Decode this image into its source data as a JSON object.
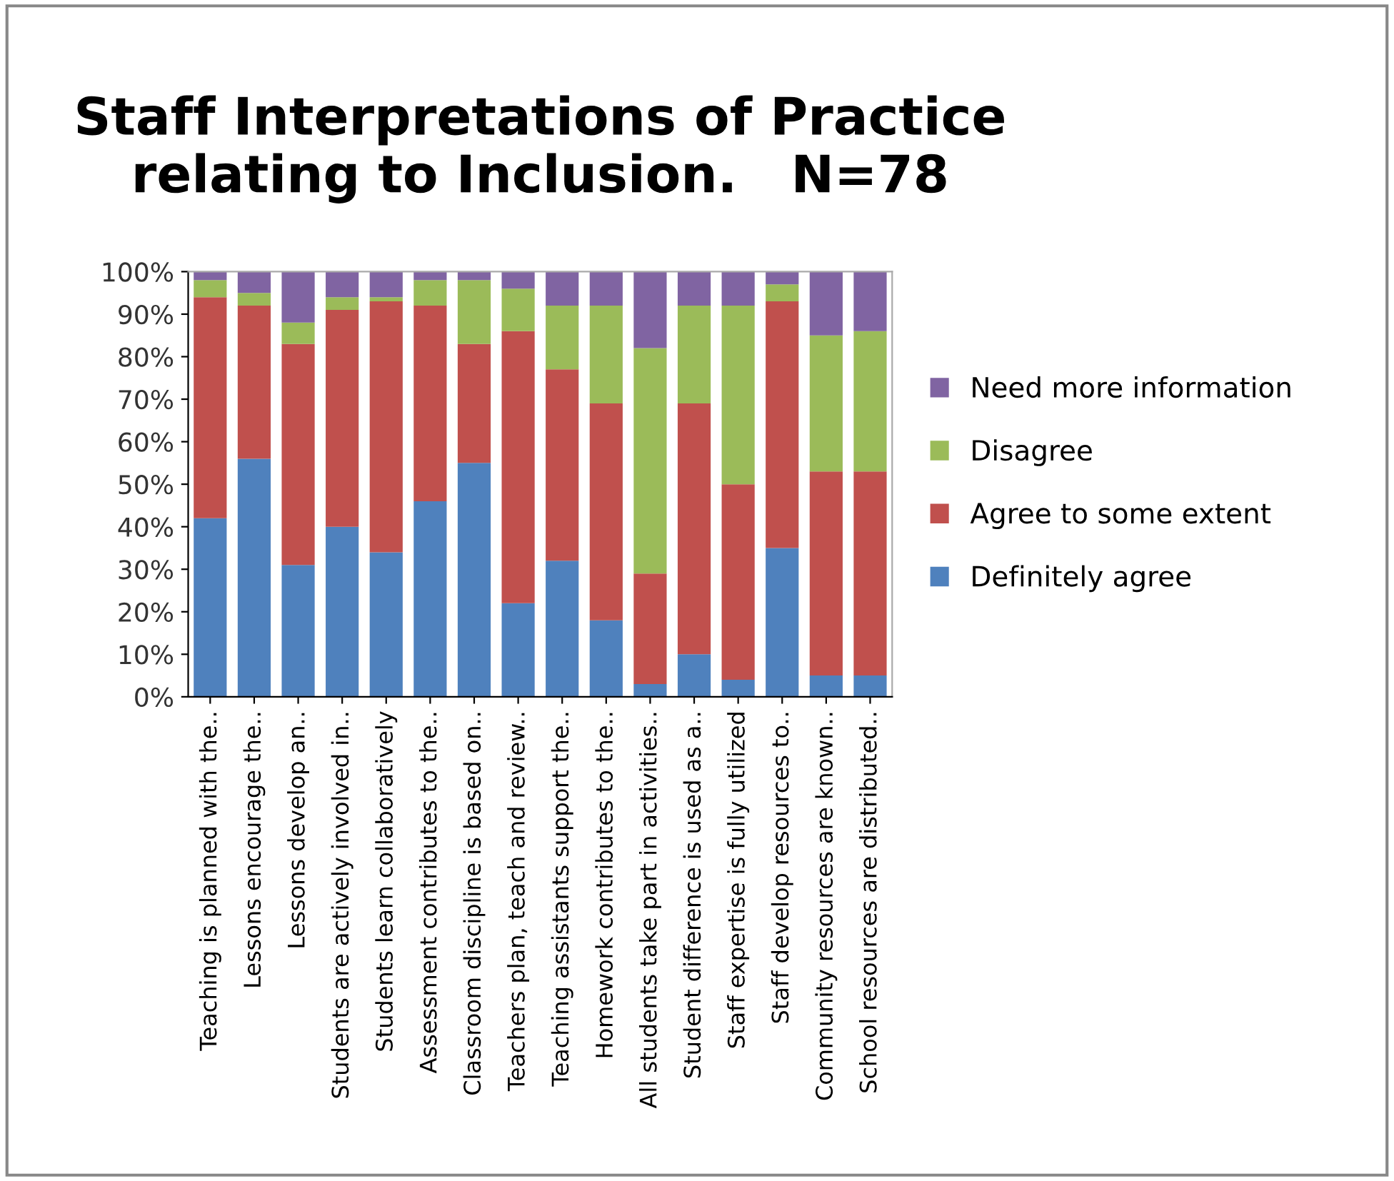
{
  "chart_data": {
    "type": "bar",
    "stacked": true,
    "title": "Staff Interpretations of Practice\nrelating to Inclusion.   N=78",
    "categories": [
      "Teaching is planned with the..",
      "Lessons encourage the..",
      "Lessons develop an..",
      "Students are actively involved in..",
      "Students learn collaboratively",
      "Assessment contributes to the..",
      "Classroom discipline is based on..",
      "Teachers plan, teach and review..",
      "Teaching assistants support the..",
      "Homework contributes to the..",
      "All students take part in activities..",
      "Student difference is used as a..",
      "Staff expertise is fully utilized",
      "Staff develop resources to..",
      "Community resources are known..",
      "School resources are distributed.."
    ],
    "series": [
      {
        "name": "Definitely agree",
        "color": "#4f81bd",
        "values": [
          42,
          56,
          31,
          40,
          34,
          46,
          55,
          22,
          32,
          18,
          3,
          10,
          4,
          35,
          5,
          5
        ]
      },
      {
        "name": "Agree to some extent",
        "color": "#c0504d",
        "values": [
          52,
          36,
          52,
          51,
          59,
          46,
          28,
          64,
          45,
          51,
          26,
          59,
          46,
          58,
          48,
          48
        ]
      },
      {
        "name": "Disagree",
        "color": "#9bbb59",
        "values": [
          4,
          3,
          5,
          3,
          1,
          6,
          15,
          10,
          15,
          23,
          53,
          23,
          42,
          4,
          32,
          33
        ]
      },
      {
        "name": "Need more information",
        "color": "#8064a2",
        "values": [
          2,
          5,
          12,
          6,
          6,
          2,
          2,
          4,
          8,
          8,
          18,
          8,
          8,
          3,
          15,
          14
        ]
      }
    ],
    "ylim": [
      0,
      100
    ],
    "yticks": [
      {
        "value": 0,
        "label": "0%"
      },
      {
        "value": 10,
        "label": "10%"
      },
      {
        "value": 20,
        "label": "20%"
      },
      {
        "value": 30,
        "label": "30%"
      },
      {
        "value": 40,
        "label": "40%"
      },
      {
        "value": 50,
        "label": "50%"
      },
      {
        "value": 60,
        "label": "60%"
      },
      {
        "value": 70,
        "label": "70%"
      },
      {
        "value": 80,
        "label": "80%"
      },
      {
        "value": 90,
        "label": "90%"
      },
      {
        "value": 100,
        "label": "100%"
      }
    ],
    "grid": false,
    "legend": "right"
  }
}
